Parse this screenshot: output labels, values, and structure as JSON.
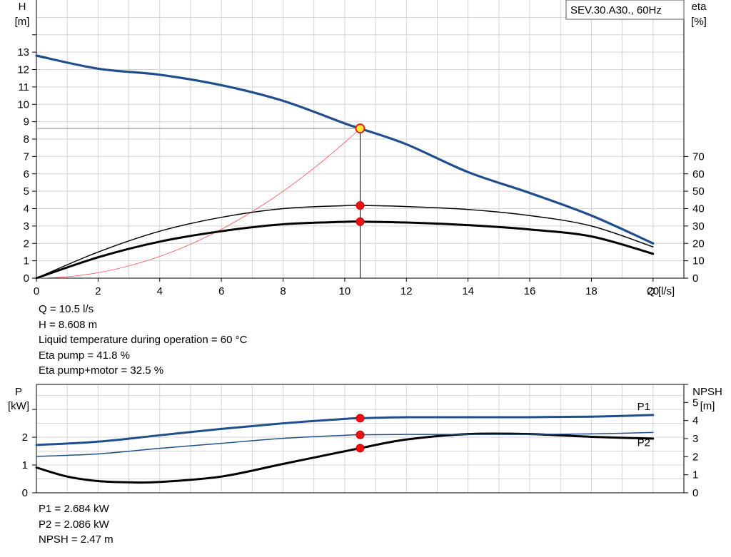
{
  "chart_data": [
    {
      "type": "line",
      "title": "SEV.30.A30., 60Hz",
      "xlabel": "Q [l/s]",
      "ylabel_left": "H\n[m]",
      "ylabel_right": "eta\n[%]",
      "xlim": [
        0,
        21
      ],
      "ylim_left": [
        0,
        16
      ],
      "ylim_right": [
        0,
        160
      ],
      "x_ticks": [
        0,
        2,
        4,
        6,
        8,
        10,
        12,
        14,
        16,
        18,
        20
      ],
      "y_ticks_left": [
        0,
        1,
        2,
        3,
        4,
        5,
        6,
        7,
        8,
        9,
        10,
        11,
        12,
        13
      ],
      "y_ticks_right": [
        0,
        10,
        20,
        30,
        40,
        50,
        60,
        70
      ],
      "grid": true,
      "series": [
        {
          "key": "H",
          "axis": "left",
          "color": "#1f4e8c",
          "width": 3.2,
          "x": [
            0,
            2,
            4,
            6,
            8,
            10,
            10.5,
            12,
            14,
            16,
            18,
            20
          ],
          "y": [
            12.8,
            12.05,
            11.7,
            11.1,
            10.2,
            8.9,
            8.608,
            7.7,
            6.1,
            4.9,
            3.6,
            2.0
          ]
        },
        {
          "key": "Eta pump",
          "axis": "right",
          "color": "#000000",
          "width": 1.5,
          "x": [
            0,
            2,
            4,
            6,
            8,
            10,
            10.5,
            12,
            14,
            16,
            18,
            20
          ],
          "y": [
            0,
            15,
            27,
            35,
            40,
            41.7,
            41.8,
            41.2,
            39.5,
            36,
            30,
            18
          ]
        },
        {
          "key": "Eta pump+motor",
          "axis": "right",
          "color": "#000000",
          "width": 3,
          "x": [
            0,
            2,
            4,
            6,
            8,
            10,
            10.5,
            12,
            14,
            16,
            18,
            20
          ],
          "y": [
            0,
            12,
            21,
            27,
            31,
            32.4,
            32.5,
            32,
            30.5,
            28,
            24,
            14
          ]
        },
        {
          "key": "System curve",
          "axis": "left",
          "color": "#ff5050",
          "width": 0.8,
          "x": [
            0,
            1,
            2,
            3,
            4,
            5,
            6,
            7,
            8,
            9,
            10,
            10.5
          ],
          "y": [
            0,
            0.078,
            0.312,
            0.703,
            1.249,
            1.952,
            2.811,
            3.826,
            4.997,
            6.325,
            7.808,
            8.608
          ]
        }
      ],
      "operating_point": {
        "Q": 10.5,
        "H": 8.608,
        "eta_pump": 41.8,
        "eta_total": 32.5
      },
      "info": [
        "Q = 10.5 l/s",
        "H = 8.608 m",
        "Liquid temperature during operation = 60 °C",
        "Eta pump = 41.8 %",
        "Eta pump+motor = 32.5 %"
      ]
    },
    {
      "type": "line",
      "ylabel_left": "P\n[kW]",
      "ylabel_right": "NPSH\n[m]",
      "xlim": [
        0,
        21
      ],
      "ylim_left": [
        0,
        3.9
      ],
      "ylim_right": [
        0,
        6
      ],
      "y_ticks_left": [
        0,
        1,
        2
      ],
      "y_ticks_right": [
        0,
        1,
        2,
        3,
        4,
        5
      ],
      "grid": true,
      "series": [
        {
          "key": "P1",
          "name": "P1",
          "axis": "left",
          "color": "#1f4e8c",
          "width": 3,
          "x": [
            0,
            2,
            4,
            6,
            8,
            10,
            10.5,
            12,
            14,
            16,
            18,
            20
          ],
          "y": [
            1.72,
            1.84,
            2.07,
            2.3,
            2.5,
            2.66,
            2.684,
            2.72,
            2.72,
            2.72,
            2.74,
            2.8
          ]
        },
        {
          "key": "P2",
          "name": "P2",
          "axis": "left",
          "color": "#1f4e8c",
          "width": 1.5,
          "x": [
            0,
            2,
            4,
            6,
            8,
            10,
            10.5,
            12,
            14,
            16,
            18,
            20
          ],
          "y": [
            1.31,
            1.4,
            1.6,
            1.78,
            1.96,
            2.07,
            2.086,
            2.1,
            2.1,
            2.1,
            2.12,
            2.17
          ]
        },
        {
          "key": "NPSH",
          "axis": "right",
          "color": "#000000",
          "width": 3,
          "x": [
            0,
            1,
            2,
            3,
            4,
            6,
            8,
            10,
            10.5,
            12,
            14,
            16,
            18,
            20
          ],
          "y": [
            1.4,
            0.9,
            0.65,
            0.58,
            0.6,
            0.9,
            1.6,
            2.3,
            2.47,
            2.95,
            3.25,
            3.25,
            3.1,
            3.0
          ]
        }
      ],
      "operating_point": {
        "Q": 10.5,
        "P1": 2.684,
        "P2": 2.086,
        "NPSH": 2.47
      },
      "info": [
        "P1 = 2.684 kW",
        "P2 = 2.086 kW",
        "NPSH = 2.47 m"
      ]
    }
  ]
}
